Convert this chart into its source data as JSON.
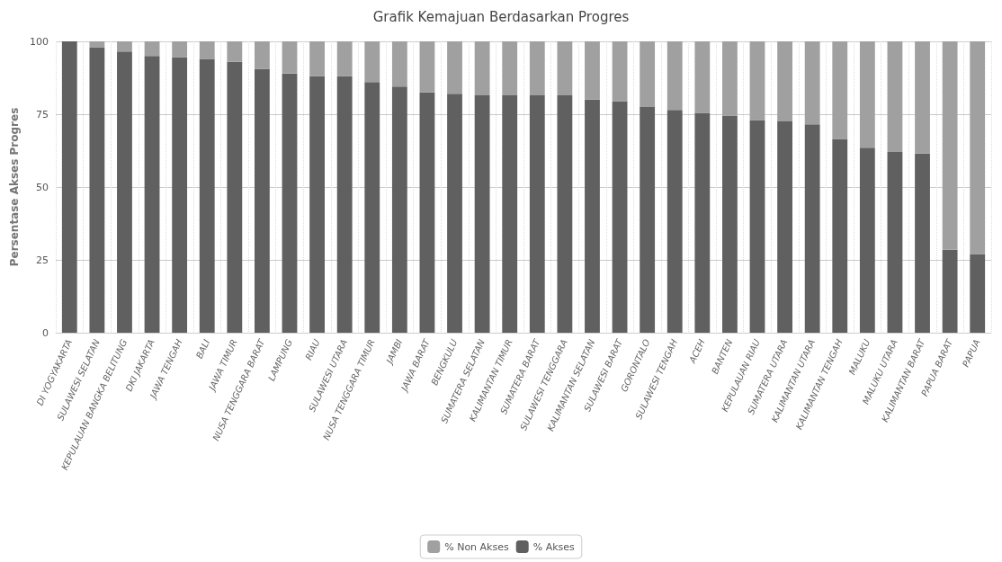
{
  "chart_data": {
    "type": "bar",
    "title": "Grafik Kemajuan Berdasarkan Progres",
    "ylabel": "Persentase Akses Progres",
    "categories": [
      "DI YOGYAKARTA",
      "SULAWESI SELATAN",
      "KEPULAUAN BANGKA BELITUNG",
      "DKI JAKARTA",
      "JAWA TENGAH",
      "BALI",
      "JAWA TIMUR",
      "NUSA TENGGARA BARAT",
      "LAMPUNG",
      "RIAU",
      "SULAWESI UTARA",
      "NUSA TENGGARA TIMUR",
      "JAMBI",
      "JAWA BARAT",
      "BENGKULU",
      "SUMATERA SELATAN",
      "KALIMANTAN TIMUR",
      "SUMATERA BARAT",
      "SULAWESI TENGGARA",
      "KALIMANTAN SELATAN",
      "SULAWESI BARAT",
      "GORONTALO",
      "SULAWESI TENGAH",
      "ACEH",
      "BANTEN",
      "KEPULAUAN RIAU",
      "SUMATERA UTARA",
      "KALIMANTAN UTARA",
      "KALIMANTAN TENGAH",
      "MALUKU",
      "MALUKU UTARA",
      "KALIMANTAN BARAT",
      "PAPUA BARAT",
      "PAPUA"
    ],
    "series": [
      {
        "name": "% Akses",
        "color": "#606060",
        "values": [
          100,
          98,
          96.5,
          95,
          94.5,
          94,
          93,
          90.5,
          89,
          88,
          88,
          86,
          84.5,
          82.5,
          82,
          81.5,
          81.5,
          81.5,
          81.5,
          80,
          79.5,
          77.5,
          76.5,
          75.5,
          74.5,
          73,
          72.5,
          71.5,
          66.5,
          63.5,
          62,
          61.5,
          28.5,
          27
        ]
      },
      {
        "name": "% Non Akses",
        "color": "#a0a0a0",
        "values": [
          0,
          2,
          3.5,
          5,
          5.5,
          6,
          7,
          9.5,
          11,
          12,
          12,
          14,
          15.5,
          17.5,
          18,
          18.5,
          18.5,
          18.5,
          18.5,
          20,
          20.5,
          22.5,
          23.5,
          24.5,
          25.5,
          27,
          27.5,
          28.5,
          33.5,
          36.5,
          38,
          38.5,
          71.5,
          73
        ]
      }
    ],
    "stacked": true,
    "ylim": [
      0,
      100
    ],
    "yticks": [
      0,
      25,
      50,
      75,
      100
    ],
    "grid": true,
    "legend": "bottom"
  }
}
